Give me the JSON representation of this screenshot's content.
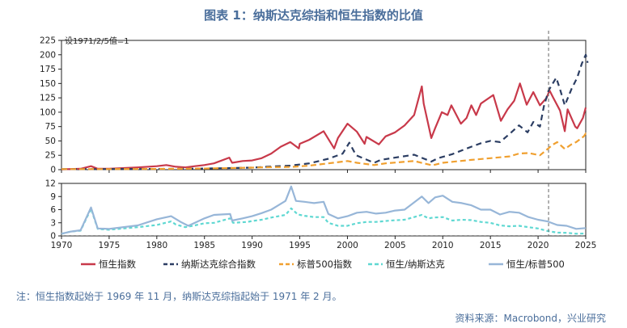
{
  "title": "图表 1：纳斯达克综指和恒生指数的比值",
  "footnote": "注：恒生指数起始于 1969 年 11 月，纳斯达克综指起始于 1971 年 2 月。",
  "source": "资料来源：Macrobond，兴业研究",
  "chart_data": [
    {
      "type": "line",
      "panel": "top",
      "annotation": "设1971/2/5值=1",
      "xlim": [
        1970,
        2025
      ],
      "ylim": [
        0,
        225
      ],
      "yticks": [
        "0",
        "25",
        "50",
        "75",
        "100",
        "125",
        "150",
        "175",
        "200",
        "225"
      ],
      "vline_x": 2021.1,
      "series": [
        {
          "name": "恒生指数",
          "key": "hsi",
          "color": "#c8394a",
          "dash": "solid",
          "points": [
            [
              1970,
              0.5
            ],
            [
              1972,
              1.5
            ],
            [
              1973.1,
              6
            ],
            [
              1973.8,
              1.5
            ],
            [
              1975,
              1.5
            ],
            [
              1978,
              4
            ],
            [
              1980,
              6
            ],
            [
              1981,
              8
            ],
            [
              1982,
              5
            ],
            [
              1983,
              4
            ],
            [
              1984,
              6
            ],
            [
              1985,
              8
            ],
            [
              1986,
              11
            ],
            [
              1987.6,
              21
            ],
            [
              1987.9,
              12
            ],
            [
              1989,
              15
            ],
            [
              1990,
              16
            ],
            [
              1991,
              20
            ],
            [
              1992,
              28
            ],
            [
              1993,
              40
            ],
            [
              1994,
              48
            ],
            [
              1994.9,
              37
            ],
            [
              1995,
              45
            ],
            [
              1996,
              52
            ],
            [
              1997.5,
              67
            ],
            [
              1998.6,
              37
            ],
            [
              1999,
              55
            ],
            [
              2000,
              80
            ],
            [
              2001,
              66
            ],
            [
              2001.8,
              45
            ],
            [
              2002,
              57
            ],
            [
              2003.3,
              44
            ],
            [
              2004,
              58
            ],
            [
              2005,
              65
            ],
            [
              2006,
              77
            ],
            [
              2007,
              95
            ],
            [
              2007.8,
              145
            ],
            [
              2008,
              115
            ],
            [
              2008.8,
              55
            ],
            [
              2009.2,
              72
            ],
            [
              2009.9,
              100
            ],
            [
              2010.5,
              95
            ],
            [
              2010.9,
              112
            ],
            [
              2011.9,
              80
            ],
            [
              2012.5,
              90
            ],
            [
              2013,
              112
            ],
            [
              2013.5,
              95
            ],
            [
              2014,
              115
            ],
            [
              2015.3,
              130
            ],
            [
              2016.1,
              85
            ],
            [
              2016.8,
              105
            ],
            [
              2017.5,
              120
            ],
            [
              2018.1,
              150
            ],
            [
              2018.8,
              113
            ],
            [
              2019.5,
              135
            ],
            [
              2020.2,
              112
            ],
            [
              2020.9,
              125
            ],
            [
              2021.2,
              138
            ],
            [
              2021.6,
              125
            ],
            [
              2022.3,
              103
            ],
            [
              2022.8,
              67
            ],
            [
              2023.1,
              105
            ],
            [
              2023.9,
              75
            ],
            [
              2024.1,
              72
            ],
            [
              2024.7,
              90
            ],
            [
              2025,
              108
            ]
          ]
        },
        {
          "name": "纳斯达克综合指数",
          "key": "ndx",
          "color": "#2c3e63",
          "dash": "7,5",
          "points": [
            [
              1970,
              1
            ],
            [
              1975,
              1
            ],
            [
              1980,
              1.3
            ],
            [
              1985,
              2
            ],
            [
              1990,
              3.5
            ],
            [
              1992,
              5.5
            ],
            [
              1994,
              7
            ],
            [
              1996,
              11
            ],
            [
              1998,
              19
            ],
            [
              1999.5,
              28
            ],
            [
              2000.2,
              47
            ],
            [
              2000.9,
              25
            ],
            [
              2001.5,
              21
            ],
            [
              2002.8,
              12
            ],
            [
              2003.5,
              17
            ],
            [
              2005,
              21
            ],
            [
              2007,
              26
            ],
            [
              2008.8,
              14
            ],
            [
              2009.5,
              20
            ],
            [
              2011,
              27
            ],
            [
              2013,
              40
            ],
            [
              2014,
              46
            ],
            [
              2015,
              50
            ],
            [
              2016,
              48
            ],
            [
              2017,
              62
            ],
            [
              2018,
              77
            ],
            [
              2018.9,
              65
            ],
            [
              2019.5,
              83
            ],
            [
              2020.2,
              75
            ],
            [
              2020.6,
              110
            ],
            [
              2021.1,
              138
            ],
            [
              2021.9,
              160
            ],
            [
              2022.3,
              140
            ],
            [
              2022.8,
              112
            ],
            [
              2023.5,
              140
            ],
            [
              2024.1,
              160
            ],
            [
              2024.6,
              185
            ],
            [
              2025,
              200
            ],
            [
              2025.2,
              186
            ]
          ]
        },
        {
          "name": "标普500指数",
          "key": "spx",
          "color": "#f0a030",
          "dash": "7,4",
          "points": [
            [
              1970,
              1
            ],
            [
              1975,
              1
            ],
            [
              1980,
              1.2
            ],
            [
              1985,
              1.9
            ],
            [
              1990,
              3.5
            ],
            [
              1992,
              4.3
            ],
            [
              1994,
              4.7
            ],
            [
              1996,
              7
            ],
            [
              1998,
              11
            ],
            [
              2000,
              15
            ],
            [
              2001,
              12
            ],
            [
              2002.8,
              8
            ],
            [
              2004,
              11
            ],
            [
              2007,
              15
            ],
            [
              2008.9,
              7.5
            ],
            [
              2010,
              12
            ],
            [
              2013,
              17
            ],
            [
              2015,
              20
            ],
            [
              2017,
              23
            ],
            [
              2018,
              28
            ],
            [
              2019,
              29
            ],
            [
              2020.2,
              25
            ],
            [
              2020.8,
              33
            ],
            [
              2021.5,
              43
            ],
            [
              2022,
              48
            ],
            [
              2022.8,
              36
            ],
            [
              2023.5,
              44
            ],
            [
              2024,
              48
            ],
            [
              2024.8,
              58
            ],
            [
              2025,
              63
            ],
            [
              2025.2,
              61
            ]
          ]
        }
      ]
    },
    {
      "type": "line",
      "panel": "bottom",
      "xlim": [
        1970,
        2025
      ],
      "ylim": [
        0,
        12
      ],
      "yticks": [
        "0",
        "3",
        "6",
        "9",
        "12"
      ],
      "xticks": [
        "1970",
        "1975",
        "1980",
        "1985",
        "1990",
        "1995",
        "2000",
        "2005",
        "2010",
        "2015",
        "2020",
        "2025"
      ],
      "vline_x": 2021.1,
      "series": [
        {
          "name": "恒生/纳斯达克",
          "key": "hsi_ndx",
          "color": "#5fd8d2",
          "dash": "4,3",
          "points": [
            [
              1970,
              0.5
            ],
            [
              1971,
              1
            ],
            [
              1972,
              1.2
            ],
            [
              1973.1,
              6.2
            ],
            [
              1973.8,
              1.6
            ],
            [
              1975,
              1.4
            ],
            [
              1978,
              2
            ],
            [
              1980,
              2.5
            ],
            [
              1981.5,
              3.3
            ],
            [
              1982,
              2.6
            ],
            [
              1983,
              2
            ],
            [
              1984,
              2.4
            ],
            [
              1985,
              2.9
            ],
            [
              1986,
              3
            ],
            [
              1987.7,
              4
            ],
            [
              1988,
              3
            ],
            [
              1989.5,
              3.2
            ],
            [
              1990,
              3.4
            ],
            [
              1991,
              3.7
            ],
            [
              1992,
              4.2
            ],
            [
              1993.5,
              4.8
            ],
            [
              1994.1,
              6.3
            ],
            [
              1994.8,
              4.9
            ],
            [
              1995.5,
              4.6
            ],
            [
              1996.5,
              4.3
            ],
            [
              1997.5,
              4.3
            ],
            [
              1998,
              3
            ],
            [
              1999,
              2.3
            ],
            [
              2000,
              2.3
            ],
            [
              2001,
              2.9
            ],
            [
              2002,
              3.2
            ],
            [
              2003,
              3.2
            ],
            [
              2004.5,
              3.5
            ],
            [
              2006,
              3.7
            ],
            [
              2007.8,
              4.8
            ],
            [
              2008.5,
              4
            ],
            [
              2009,
              4.2
            ],
            [
              2010,
              4.3
            ],
            [
              2011,
              3.5
            ],
            [
              2012,
              3.7
            ],
            [
              2013,
              3.6
            ],
            [
              2014,
              3.2
            ],
            [
              2015,
              3
            ],
            [
              2016,
              2.4
            ],
            [
              2017,
              2.2
            ],
            [
              2018,
              2.3
            ],
            [
              2019,
              2
            ],
            [
              2020,
              1.7
            ],
            [
              2021,
              1.1
            ],
            [
              2022,
              0.75
            ],
            [
              2023,
              0.7
            ],
            [
              2024,
              0.5
            ],
            [
              2025,
              0.55
            ]
          ]
        },
        {
          "name": "恒生/标普500",
          "key": "hsi_spx",
          "color": "#97b6d8",
          "dash": "solid",
          "points": [
            [
              1970,
              0.5
            ],
            [
              1971,
              1
            ],
            [
              1972,
              1.3
            ],
            [
              1973.1,
              6.5
            ],
            [
              1973.8,
              1.7
            ],
            [
              1975,
              1.6
            ],
            [
              1978,
              2.4
            ],
            [
              1980,
              3.8
            ],
            [
              1981.5,
              4.5
            ],
            [
              1982.5,
              3.2
            ],
            [
              1983.3,
              2.3
            ],
            [
              1984,
              3
            ],
            [
              1985,
              4
            ],
            [
              1986,
              4.8
            ],
            [
              1987.7,
              5
            ],
            [
              1987.9,
              3.5
            ],
            [
              1989,
              4
            ],
            [
              1990,
              4.5
            ],
            [
              1991,
              5.2
            ],
            [
              1992,
              6
            ],
            [
              1993.5,
              8
            ],
            [
              1994.1,
              11.3
            ],
            [
              1994.6,
              8
            ],
            [
              1995.5,
              7.8
            ],
            [
              1996.5,
              7.5
            ],
            [
              1997.5,
              7.8
            ],
            [
              1998,
              5
            ],
            [
              1999,
              4
            ],
            [
              2000,
              4.5
            ],
            [
              2001,
              5.3
            ],
            [
              2002,
              5.5
            ],
            [
              2003,
              5.1
            ],
            [
              2004,
              5.3
            ],
            [
              2005,
              5.8
            ],
            [
              2006,
              6
            ],
            [
              2007.8,
              9
            ],
            [
              2008.5,
              7.5
            ],
            [
              2009.2,
              8.8
            ],
            [
              2010,
              9.2
            ],
            [
              2011,
              7.8
            ],
            [
              2012,
              7.5
            ],
            [
              2013,
              7
            ],
            [
              2014,
              6
            ],
            [
              2015,
              6
            ],
            [
              2016,
              4.9
            ],
            [
              2017,
              5.5
            ],
            [
              2018,
              5.3
            ],
            [
              2019,
              4.3
            ],
            [
              2020,
              3.7
            ],
            [
              2021,
              3.3
            ],
            [
              2022,
              2.5
            ],
            [
              2023,
              2.3
            ],
            [
              2024,
              1.6
            ],
            [
              2025,
              1.8
            ]
          ]
        }
      ]
    }
  ]
}
